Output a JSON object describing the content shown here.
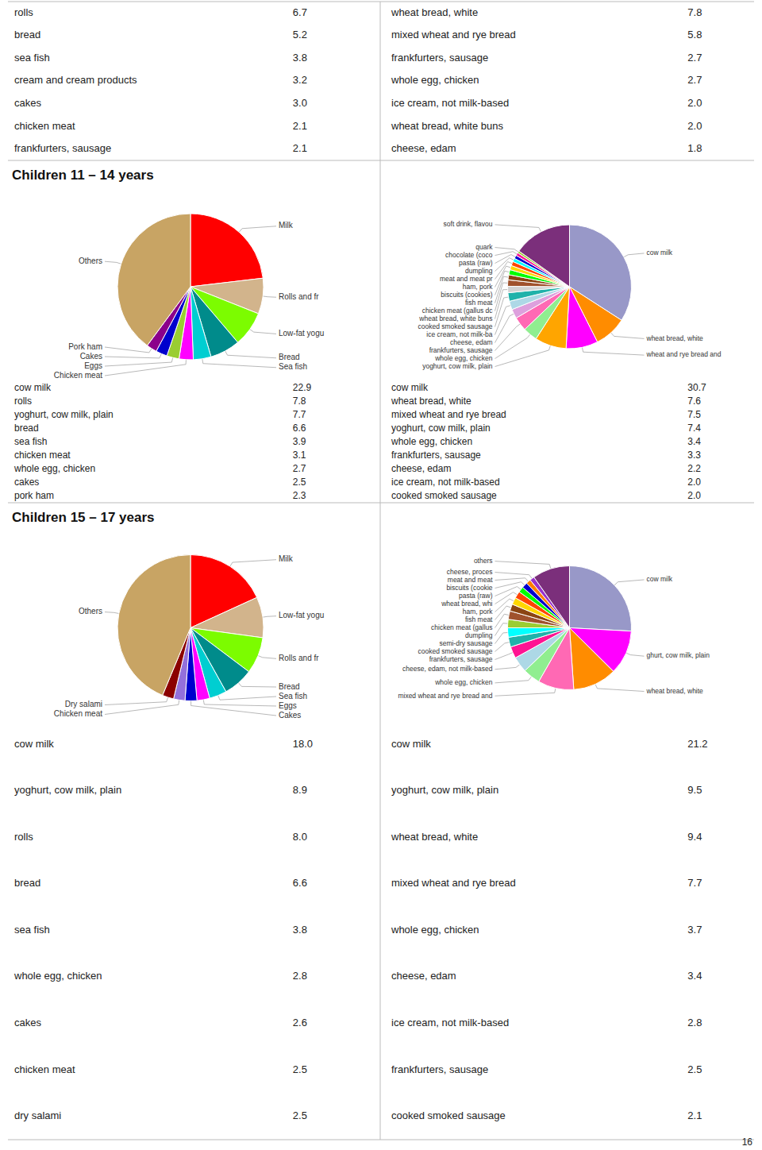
{
  "chart_data": [
    {
      "type": "table",
      "categories": [
        "rolls",
        "bread",
        "sea fish",
        "cream and cream products",
        "cakes",
        "chicken meat",
        "frankfurters, sausage"
      ],
      "values": [
        6.7,
        5.2,
        3.8,
        3.2,
        3.0,
        2.1,
        2.1
      ],
      "value_labels": [
        "6.7",
        "5.2",
        "3.8",
        "3.2",
        "3.0",
        "2.1",
        "2.1"
      ]
    },
    {
      "type": "table",
      "categories": [
        "wheat bread, white",
        "mixed wheat and rye bread",
        "frankfurters, sausage",
        "whole egg, chicken",
        "ice cream, not milk-based",
        "wheat bread, white buns",
        "cheese, edam"
      ],
      "values": [
        7.8,
        5.8,
        2.7,
        2.7,
        2.0,
        2.0,
        1.8
      ],
      "value_labels": [
        "7.8",
        "5.8",
        "2.7",
        "2.7",
        "2.0",
        "2.0",
        "1.8"
      ]
    },
    {
      "type": "pie",
      "title": "Children 11 – 14 years",
      "categories": [
        "Milk",
        "Rolls and fr",
        "Low-fat yogu",
        "Bread",
        "Sea fish",
        "Chicken meat",
        "Eggs",
        "Cakes",
        "Pork ham",
        "Others"
      ],
      "values": [
        22.9,
        7.8,
        7.7,
        6.6,
        3.9,
        3.1,
        2.7,
        2.5,
        2.3,
        39.5
      ],
      "colors": [
        "#FF0000",
        "#D2B48C",
        "#7CFC00",
        "#008B8B",
        "#00CED1",
        "#FF00FF",
        "#9ACD32",
        "#0000CD",
        "#8B008B",
        "#C8A464"
      ]
    },
    {
      "type": "pie",
      "categories": [
        "cow milk",
        "wheat bread, white",
        "wheat and rye bread and",
        "yoghurt, cow milk, plain",
        "whole egg, chicken",
        "frankfurters, sausage",
        "cheese, edam",
        "ice cream, not milk-ba",
        "cooked smoked sausage",
        "wheat bread, white buns",
        "chicken meat (gallus dc",
        "fish meat",
        "biscuits (cookies)",
        "ham, pork",
        "meat and meat pr",
        "dumpling",
        "pasta (raw)",
        "chocolate (coco",
        "quark",
        "soft drink, flavou"
      ],
      "values": [
        30.7,
        7.6,
        7.5,
        7.4,
        3.4,
        3.3,
        2.2,
        2.0,
        2.0,
        1.5,
        1.5,
        1.2,
        1.2,
        1.0,
        1.0,
        0.8,
        0.8,
        0.7,
        0.5,
        13.7
      ],
      "colors": [
        "#9898C8",
        "#FF8C00",
        "#FF00FF",
        "#FFA500",
        "#90EE90",
        "#FF69B4",
        "#DDA0DD",
        "#ADD8E6",
        "#20B2AA",
        "#D3D3D3",
        "#A0522D",
        "#8B4513",
        "#00FF00",
        "#FFD700",
        "#FF4500",
        "#00FFFF",
        "#0000CD",
        "#FF1493",
        "#9ACD32",
        "#7B2F7B"
      ]
    },
    {
      "type": "table",
      "categories": [
        "cow milk",
        "rolls",
        "yoghurt, cow milk, plain",
        "bread",
        "sea fish",
        "chicken meat",
        "whole egg, chicken",
        "cakes",
        "pork ham"
      ],
      "values": [
        22.9,
        7.8,
        7.7,
        6.6,
        3.9,
        3.1,
        2.7,
        2.5,
        2.3
      ],
      "value_labels": [
        "22.9",
        "7.8",
        "7.7",
        "6.6",
        "3.9",
        "3.1",
        "2.7",
        "2.5",
        "2.3"
      ]
    },
    {
      "type": "table",
      "categories": [
        "cow milk",
        "wheat bread, white",
        "mixed wheat and rye bread",
        "yoghurt, cow milk, plain",
        "whole egg, chicken",
        "frankfurters, sausage",
        "cheese, edam",
        "ice cream, not milk-based",
        "cooked smoked sausage"
      ],
      "values": [
        30.7,
        7.6,
        7.5,
        7.4,
        3.4,
        3.3,
        2.2,
        2.0,
        2.0
      ],
      "value_labels": [
        "30.7",
        "7.6",
        "7.5",
        "7.4",
        "3.4",
        "3.3",
        "2.2",
        "2.0",
        "2.0"
      ]
    },
    {
      "type": "pie",
      "title": "Children 15 – 17 years",
      "categories": [
        "Milk",
        "Low-fat yogu",
        "Rolls and fr",
        "Bread",
        "Sea fish",
        "Eggs",
        "Cakes",
        "Chicken meat",
        "Dry salami",
        "Others"
      ],
      "values": [
        18.0,
        8.9,
        8.0,
        6.6,
        3.8,
        2.8,
        2.6,
        2.5,
        2.5,
        43.3
      ],
      "colors": [
        "#FF0000",
        "#D2B48C",
        "#7CFC00",
        "#008B8B",
        "#00CED1",
        "#FF00FF",
        "#0000CD",
        "#9370DB",
        "#8B0000",
        "#C8A464"
      ]
    },
    {
      "type": "pie",
      "categories": [
        "cow milk",
        "ghurt, cow milk, plain",
        "wheat bread, white",
        "mixed wheat and rye bread and",
        "whole egg, chicken",
        "cheese, edam, not milk-based",
        "frankfurters, sausage",
        "cooked smoked sausage",
        "semi-dry sausage",
        "dumpling",
        "chicken meat (gallus",
        "fish meat",
        "ham, pork",
        "wheat bread, whi",
        "pasta (raw)",
        "biscuits (cookie",
        "meat and meat",
        "cheese, proces",
        "others"
      ],
      "values": [
        21.2,
        9.5,
        9.4,
        7.7,
        3.7,
        3.4,
        2.5,
        2.1,
        2.0,
        1.8,
        1.8,
        1.5,
        1.5,
        1.5,
        1.2,
        1.2,
        1.0,
        1.0,
        8.0
      ],
      "colors": [
        "#9898C8",
        "#FF00FF",
        "#FF8C00",
        "#FF69B4",
        "#90EE90",
        "#ADD8E6",
        "#FF1493",
        "#20B2AA",
        "#00FFFF",
        "#9ACD32",
        "#A0522D",
        "#8B4513",
        "#FFD700",
        "#FF4500",
        "#00FF00",
        "#0000CD",
        "#FF7F00",
        "#9932CC",
        "#7B2F7B"
      ]
    },
    {
      "type": "table",
      "categories": [
        "cow milk",
        "yoghurt, cow milk, plain",
        "rolls",
        "bread",
        "sea fish",
        "whole egg, chicken",
        "cakes",
        "chicken meat",
        "dry salami"
      ],
      "values": [
        18.0,
        8.9,
        8.0,
        6.6,
        3.8,
        2.8,
        2.6,
        2.5,
        2.5
      ],
      "value_labels": [
        "18.0",
        "8.9",
        "8.0",
        "6.6",
        "3.8",
        "2.8",
        "2.6",
        "2.5",
        "2.5"
      ]
    },
    {
      "type": "table",
      "categories": [
        "cow milk",
        "yoghurt, cow milk, plain",
        "wheat bread, white",
        "mixed wheat and rye bread",
        "whole egg, chicken",
        "cheese, edam",
        "ice cream, not milk-based",
        "frankfurters, sausage",
        "cooked smoked sausage"
      ],
      "values": [
        21.2,
        9.5,
        9.4,
        7.7,
        3.7,
        3.4,
        2.8,
        2.5,
        2.1
      ],
      "value_labels": [
        "21.2",
        "9.5",
        "9.4",
        "7.7",
        "3.7",
        "3.4",
        "2.8",
        "2.5",
        "2.1"
      ],
      "annotations": [
        "16"
      ]
    }
  ]
}
